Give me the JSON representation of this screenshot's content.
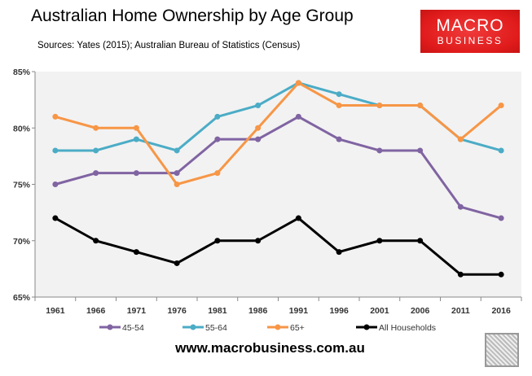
{
  "header": {
    "title": "Australian Home Ownership by Age Group",
    "subtitle": "Sources: Yates (2015); Australian Bureau of Statistics (Census)"
  },
  "logo": {
    "line1": "MACRO",
    "line2": "BUSINESS",
    "color": "#e01b1b"
  },
  "footer": {
    "website": "www.macrobusiness.com.au",
    "icon": "wolf-icon"
  },
  "chart_data": {
    "type": "line",
    "title": "Australian Home Ownership by Age Group",
    "categories": [
      "1961",
      "1966",
      "1971",
      "1976",
      "1981",
      "1986",
      "1991",
      "1996",
      "2001",
      "2006",
      "2011",
      "2016"
    ],
    "ylim": [
      65,
      85
    ],
    "yticks": [
      "65%",
      "70%",
      "75%",
      "80%",
      "85%"
    ],
    "ytick_values": [
      65,
      70,
      75,
      80,
      85
    ],
    "grid": false,
    "legend": "bottom",
    "series": [
      {
        "name": "45-54",
        "color": "#8064a2",
        "values": [
          75,
          76,
          76,
          76,
          79,
          79,
          81,
          79,
          78,
          78,
          73,
          72
        ]
      },
      {
        "name": "55-64",
        "color": "#4bacc6",
        "values": [
          78,
          78,
          79,
          78,
          81,
          82,
          84,
          83,
          82,
          82,
          79,
          78
        ]
      },
      {
        "name": "65+",
        "color": "#f79646",
        "values": [
          81,
          80,
          80,
          75,
          76,
          80,
          84,
          82,
          82,
          82,
          79,
          82
        ]
      },
      {
        "name": "All Households",
        "color": "#000000",
        "values": [
          72,
          70,
          69,
          68,
          70,
          70,
          72,
          69,
          70,
          70,
          67,
          67
        ]
      }
    ]
  }
}
